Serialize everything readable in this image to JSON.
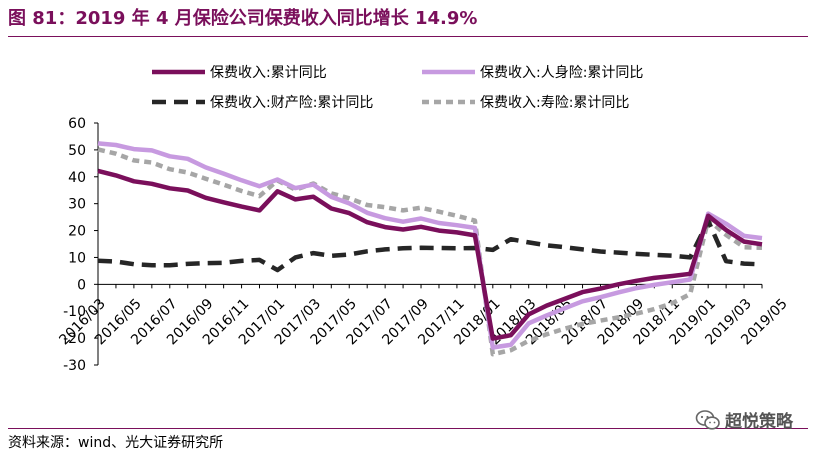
{
  "header": {
    "title": "图 81：2019 年 4 月保险公司保费收入同比增长 14.9%"
  },
  "footer": {
    "source": "资料来源：wind、光大证券研究所",
    "watermark": "超悦策略"
  },
  "chart_data": {
    "type": "line",
    "ylim": [
      -30,
      60
    ],
    "yticks": [
      -30,
      -20,
      -10,
      0,
      10,
      20,
      30,
      40,
      50,
      60
    ],
    "x": [
      "2016/03",
      "2016/04",
      "2016/05",
      "2016/06",
      "2016/07",
      "2016/08",
      "2016/09",
      "2016/10",
      "2016/11",
      "2016/12",
      "2017/01",
      "2017/02",
      "2017/03",
      "2017/04",
      "2017/05",
      "2017/06",
      "2017/07",
      "2017/08",
      "2017/09",
      "2017/10",
      "2017/11",
      "2017/12",
      "2018/01",
      "2018/02",
      "2018/03",
      "2018/04",
      "2018/05",
      "2018/06",
      "2018/07",
      "2018/08",
      "2018/09",
      "2018/10",
      "2018/11",
      "2018/12",
      "2019/01",
      "2019/02",
      "2019/03",
      "2019/04"
    ],
    "xtick_labels": [
      "2016/03",
      "2016/05",
      "2016/07",
      "2016/09",
      "2016/11",
      "2017/01",
      "2017/03",
      "2017/05",
      "2017/07",
      "2017/09",
      "2017/11",
      "2018/01",
      "2018/03",
      "2018/05",
      "2018/07",
      "2018/09",
      "2018/11",
      "2019/01",
      "2019/03",
      "2019/05"
    ],
    "grid": false,
    "legend_position": "top",
    "series": [
      {
        "name": "保费收入:累计同比",
        "color": "#7a0f5b",
        "dash": "solid",
        "values": [
          42.2,
          40.5,
          38.3,
          37.4,
          35.7,
          34.9,
          32.2,
          30.5,
          28.9,
          27.5,
          34.6,
          31.6,
          32.6,
          28.2,
          26.5,
          23.1,
          21.3,
          20.4,
          21.4,
          20.0,
          19.3,
          18.2,
          -20.2,
          -18.9,
          -11.2,
          -7.9,
          -5.4,
          -2.9,
          -1.6,
          0.0,
          1.3,
          2.4,
          3.1,
          3.9,
          25.5,
          20.2,
          15.9,
          14.9
        ]
      },
      {
        "name": "保费收入:人身险:累计同比",
        "color": "#c79ae0",
        "dash": "solid",
        "values": [
          52.4,
          51.8,
          50.3,
          49.8,
          47.6,
          46.7,
          43.5,
          41.2,
          38.7,
          36.5,
          39.0,
          35.8,
          37.1,
          32.5,
          30.1,
          26.6,
          24.6,
          23.3,
          24.5,
          22.8,
          22.0,
          21.0,
          -23.5,
          -22.5,
          -14.5,
          -11.6,
          -8.9,
          -6.3,
          -4.8,
          -3.0,
          -1.4,
          -0.2,
          0.8,
          1.8,
          26.3,
          22.5,
          18.0,
          17.2
        ]
      },
      {
        "name": "保费收入:财产险:累计同比",
        "color": "#262626",
        "dash": "long",
        "values": [
          8.8,
          8.5,
          7.5,
          7.1,
          7.1,
          7.6,
          7.9,
          8.0,
          8.7,
          9.1,
          5.3,
          10.0,
          11.6,
          10.6,
          11.1,
          12.3,
          13.0,
          13.4,
          13.6,
          13.5,
          13.4,
          13.5,
          12.8,
          16.8,
          15.6,
          14.5,
          13.8,
          13.0,
          12.2,
          11.8,
          11.3,
          11.0,
          10.7,
          10.0,
          23.6,
          8.6,
          7.7,
          7.4
        ]
      },
      {
        "name": "保费收入:寿险:累计同比",
        "color": "#a6a6a6",
        "dash": "short",
        "values": [
          50.2,
          48.6,
          46.1,
          45.3,
          42.8,
          41.6,
          39.3,
          37.1,
          34.7,
          32.8,
          38.6,
          35.2,
          37.5,
          33.8,
          32.0,
          29.5,
          28.7,
          27.5,
          28.5,
          27.0,
          25.5,
          23.7,
          -26.0,
          -24.5,
          -21.0,
          -18.6,
          -16.5,
          -14.7,
          -13.5,
          -12.3,
          -10.9,
          -9.2,
          -7.0,
          -3.6,
          24.0,
          18.4,
          13.8,
          13.6
        ]
      }
    ]
  }
}
